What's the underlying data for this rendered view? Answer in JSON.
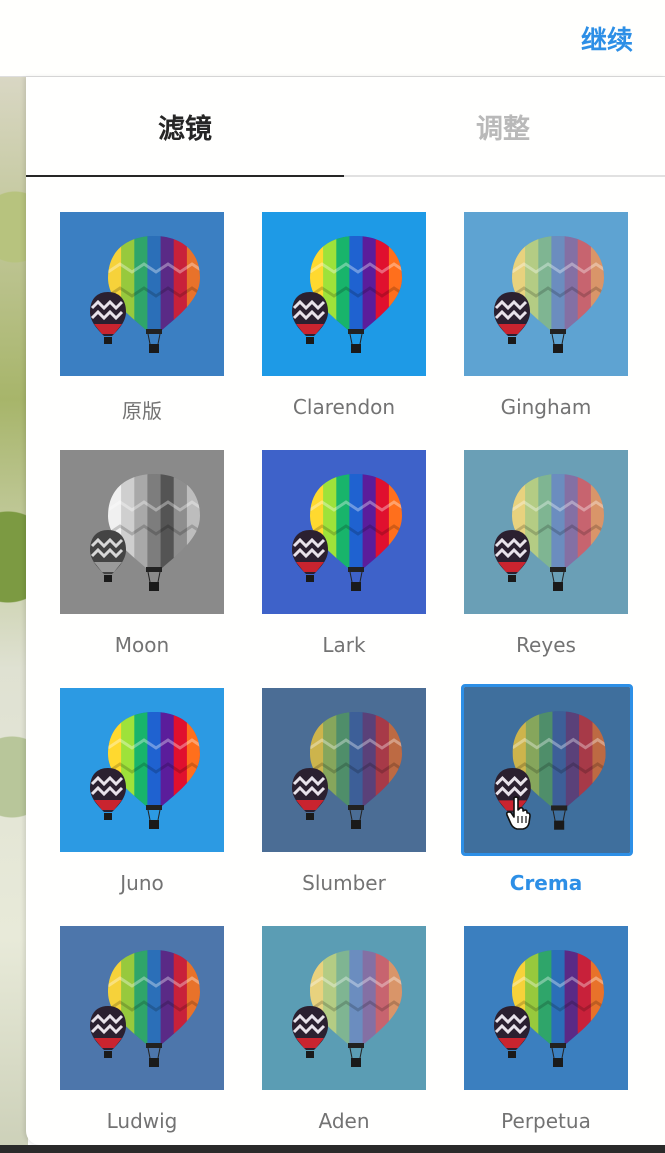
{
  "toolbar": {
    "continue_label": "继续"
  },
  "tabs": [
    {
      "label": "滤镜",
      "active": true
    },
    {
      "label": "调整",
      "active": false
    }
  ],
  "filters": [
    {
      "name": "原版",
      "bg": "#3b7fc2",
      "tone": "none"
    },
    {
      "name": "Clarendon",
      "bg": "#1e9ae6",
      "tone": "vivid"
    },
    {
      "name": "Gingham",
      "bg": "#5ea3d2",
      "tone": "faded"
    },
    {
      "name": "Moon",
      "bg": "#8a8a8a",
      "tone": "mono"
    },
    {
      "name": "Lark",
      "bg": "#3e62c9",
      "tone": "vivid"
    },
    {
      "name": "Reyes",
      "bg": "#6a9fb6",
      "tone": "faded"
    },
    {
      "name": "Juno",
      "bg": "#2c9ae3",
      "tone": "vivid"
    },
    {
      "name": "Slumber",
      "bg": "#4b6d95",
      "tone": "dim"
    },
    {
      "name": "Crema",
      "bg": "#3f6f9d",
      "tone": "dim",
      "selected": true
    },
    {
      "name": "Ludwig",
      "bg": "#4d76ab",
      "tone": "none"
    },
    {
      "name": "Aden",
      "bg": "#5b9db4",
      "tone": "faded"
    },
    {
      "name": "Perpetua",
      "bg": "#3b7fbf",
      "tone": "none"
    }
  ],
  "colors": {
    "accent": "#2d8fe6",
    "active_tab": "#262626",
    "inactive_tab": "#b9b9b9",
    "label": "#737373"
  },
  "icons": {
    "cursor": "hand-pointer-icon",
    "thumbnail": "hot-air-balloon"
  }
}
